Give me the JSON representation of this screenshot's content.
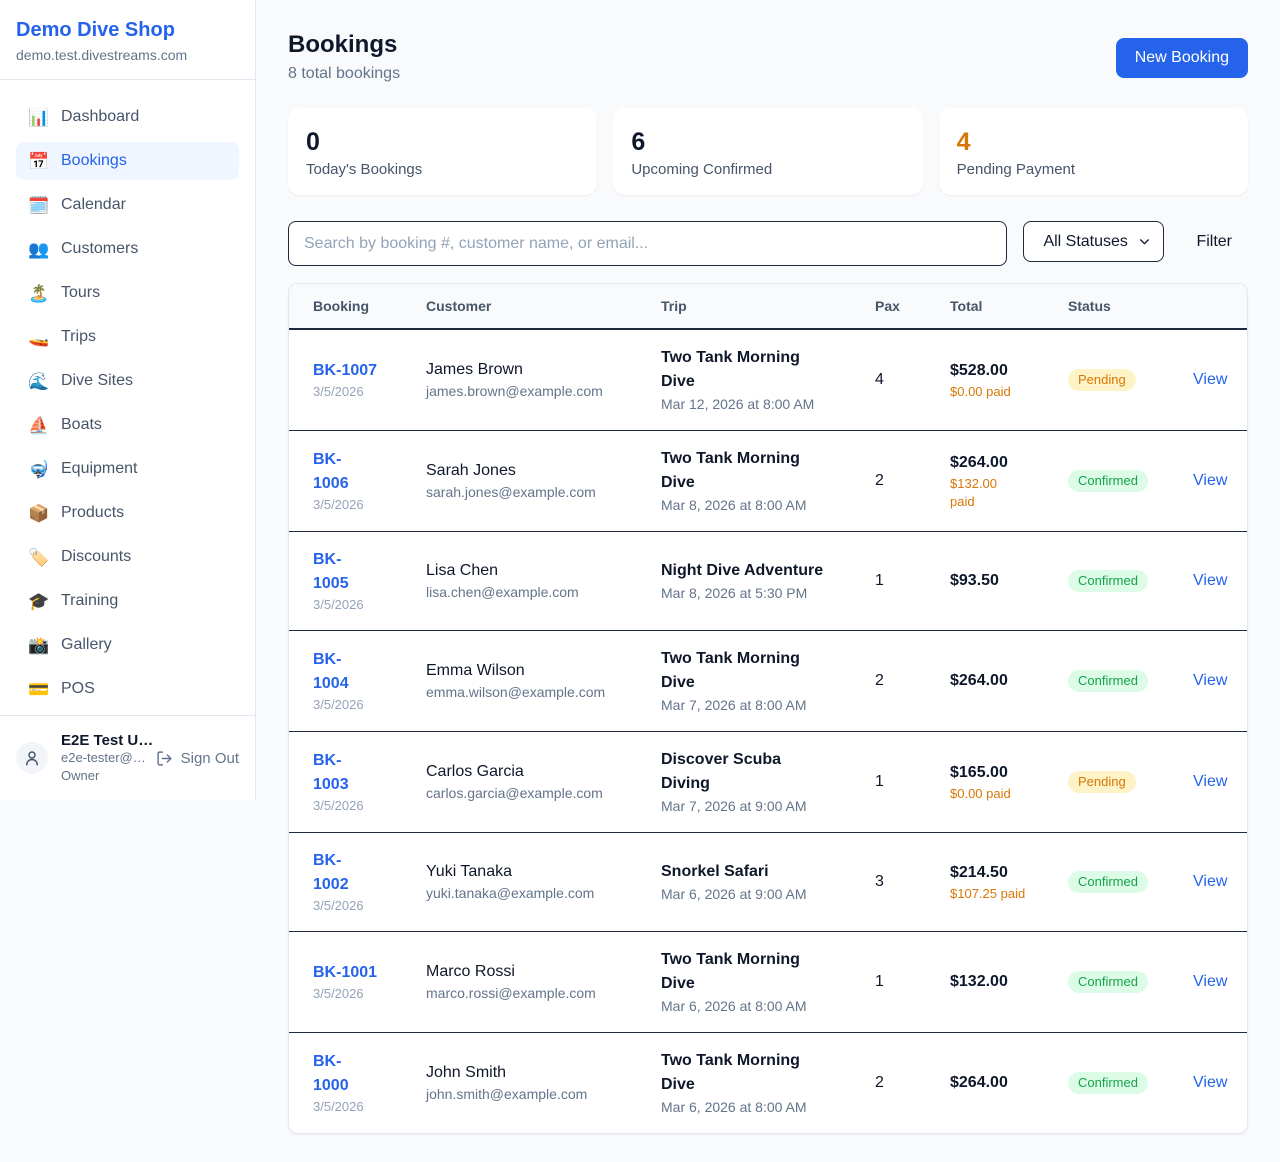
{
  "sidebar": {
    "brand": {
      "name": "Demo Dive Shop",
      "domain": "demo.test.divestreams.com"
    },
    "nav": [
      {
        "icon": "📊",
        "icon_name": "bar-chart-icon",
        "label": "Dashboard",
        "active": false
      },
      {
        "icon": "📅",
        "icon_name": "calendar-icon",
        "label": "Bookings",
        "active": true
      },
      {
        "icon": "🗓️",
        "icon_name": "spiral-calendar-icon",
        "label": "Calendar",
        "active": false
      },
      {
        "icon": "👥",
        "icon_name": "people-icon",
        "label": "Customers",
        "active": false
      },
      {
        "icon": "🏝️",
        "icon_name": "island-icon",
        "label": "Tours",
        "active": false
      },
      {
        "icon": "🚤",
        "icon_name": "speedboat-icon",
        "label": "Trips",
        "active": false
      },
      {
        "icon": "🌊",
        "icon_name": "wave-icon",
        "label": "Dive Sites",
        "active": false
      },
      {
        "icon": "⛵",
        "icon_name": "sailboat-icon",
        "label": "Boats",
        "active": false
      },
      {
        "icon": "🤿",
        "icon_name": "diving-mask-icon",
        "label": "Equipment",
        "active": false
      },
      {
        "icon": "📦",
        "icon_name": "package-icon",
        "label": "Products",
        "active": false
      },
      {
        "icon": "🏷️",
        "icon_name": "tag-icon",
        "label": "Discounts",
        "active": false
      },
      {
        "icon": "🎓",
        "icon_name": "graduation-cap-icon",
        "label": "Training",
        "active": false
      },
      {
        "icon": "📸",
        "icon_name": "camera-icon",
        "label": "Gallery",
        "active": false
      },
      {
        "icon": "💳",
        "icon_name": "credit-card-icon",
        "label": "POS",
        "active": false
      }
    ],
    "user": {
      "name": "E2E Test U…",
      "email": "e2e-tester@…",
      "role": "Owner",
      "sign_out_label": "Sign Out"
    }
  },
  "header": {
    "title": "Bookings",
    "subtitle": "8 total bookings",
    "new_booking_label": "New Booking"
  },
  "stats": [
    {
      "value": "0",
      "label": "Today's Bookings",
      "accent": false
    },
    {
      "value": "6",
      "label": "Upcoming Confirmed",
      "accent": false
    },
    {
      "value": "4",
      "label": "Pending Payment",
      "accent": true
    }
  ],
  "filters": {
    "search_placeholder": "Search by booking #, customer name, or email...",
    "status_selected": "All Statuses",
    "filter_label": "Filter"
  },
  "table": {
    "columns": [
      "Booking",
      "Customer",
      "Trip",
      "Pax",
      "Total",
      "Status"
    ],
    "view_label": "View",
    "rows": [
      {
        "booking_id": "BK-1007",
        "booking_date": "3/5/2026",
        "customer": "James Brown",
        "email": "james.brown@example.com",
        "trip": "Two Tank Morning Dive",
        "trip_datetime": "Mar 12, 2026 at 8:00 AM",
        "pax": "4",
        "total": "$528.00",
        "paid": "$0.00 paid",
        "status": "Pending"
      },
      {
        "booking_id": "BK-\n1006",
        "booking_date": "3/5/2026",
        "customer": "Sarah Jones",
        "email": "sarah.jones@example.com",
        "trip": "Two Tank Morning Dive",
        "trip_datetime": "Mar 8, 2026 at 8:00 AM",
        "pax": "2",
        "total": "$264.00",
        "paid": "$132.00\npaid",
        "status": "Confirmed"
      },
      {
        "booking_id": "BK-\n1005",
        "booking_date": "3/5/2026",
        "customer": "Lisa Chen",
        "email": "lisa.chen@example.com",
        "trip": "Night Dive Adventure",
        "trip_datetime": "Mar 8, 2026 at 5:30 PM",
        "pax": "1",
        "total": "$93.50",
        "paid": "",
        "status": "Confirmed"
      },
      {
        "booking_id": "BK-\n1004",
        "booking_date": "3/5/2026",
        "customer": "Emma Wilson",
        "email": "emma.wilson@example.com",
        "trip": "Two Tank Morning Dive",
        "trip_datetime": "Mar 7, 2026 at 8:00 AM",
        "pax": "2",
        "total": "$264.00",
        "paid": "",
        "status": "Confirmed"
      },
      {
        "booking_id": "BK-\n1003",
        "booking_date": "3/5/2026",
        "customer": "Carlos Garcia",
        "email": "carlos.garcia@example.com",
        "trip": "Discover Scuba Diving",
        "trip_datetime": "Mar 7, 2026 at 9:00 AM",
        "pax": "1",
        "total": "$165.00",
        "paid": "$0.00 paid",
        "status": "Pending"
      },
      {
        "booking_id": "BK-\n1002",
        "booking_date": "3/5/2026",
        "customer": "Yuki Tanaka",
        "email": "yuki.tanaka@example.com",
        "trip": "Snorkel Safari",
        "trip_datetime": "Mar 6, 2026 at 9:00 AM",
        "pax": "3",
        "total": "$214.50",
        "paid": "$107.25 paid",
        "status": "Confirmed"
      },
      {
        "booking_id": "BK-1001",
        "booking_date": "3/5/2026",
        "customer": "Marco Rossi",
        "email": "marco.rossi@example.com",
        "trip": "Two Tank Morning Dive",
        "trip_datetime": "Mar 6, 2026 at 8:00 AM",
        "pax": "1",
        "total": "$132.00",
        "paid": "",
        "status": "Confirmed"
      },
      {
        "booking_id": "BK-\n1000",
        "booking_date": "3/5/2026",
        "customer": "John Smith",
        "email": "john.smith@example.com",
        "trip": "Two Tank Morning Dive",
        "trip_datetime": "Mar 6, 2026 at 8:00 AM",
        "pax": "2",
        "total": "$264.00",
        "paid": "",
        "status": "Confirmed"
      }
    ]
  },
  "colors": {
    "brand_blue": "#2563eb",
    "page_bg": "#f8fafc",
    "active_nav_bg": "#eff6ff",
    "row_border": "#1e293b",
    "pending_bg": "#fef3c7",
    "pending_text": "#d97706",
    "confirmed_bg": "#dcfce7",
    "confirmed_text": "#16a34a",
    "accent_orange": "#d97706"
  }
}
